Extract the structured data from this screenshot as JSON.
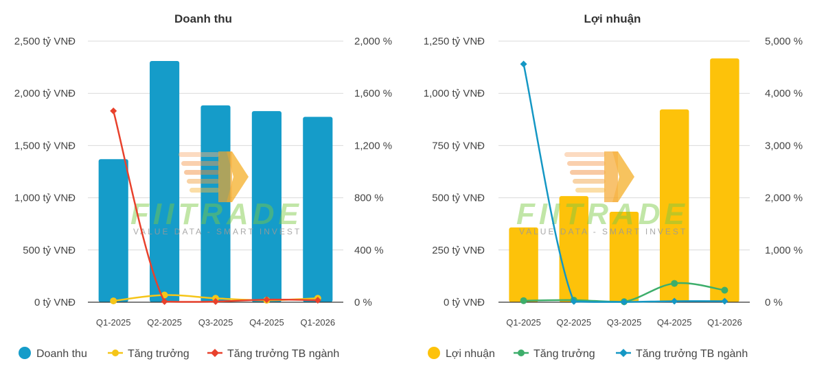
{
  "watermark": {
    "text": "FIITRADE",
    "tagline": "VALUE DATA - SMART INVEST"
  },
  "colors": {
    "revenue_bar": "#159CC9",
    "revenue_growth": "#F5C518",
    "revenue_industry": "#E8412C",
    "profit_bar": "#FDC20A",
    "profit_growth": "#3DAE6B",
    "profit_industry": "#1497C4",
    "grid": "#d9d9d9",
    "axis": "#333333"
  },
  "chart_data": [
    {
      "type": "bar",
      "title": "Doanh thu",
      "categories": [
        "Q1-2025",
        "Q2-2025",
        "Q3-2025",
        "Q4-2025",
        "Q1-2026"
      ],
      "bar_series": {
        "name": "Doanh thu",
        "values": [
          1370,
          2310,
          1885,
          1830,
          1775
        ]
      },
      "line_series": [
        {
          "name": "Tăng trưởng",
          "values": [
            10,
            55,
            30,
            15,
            30
          ]
        },
        {
          "name": "Tăng trưởng TB ngành",
          "values": [
            1465,
            5,
            5,
            20,
            15
          ]
        }
      ],
      "y_left": {
        "ylim": [
          0,
          2500
        ],
        "ticks": [
          0,
          500,
          1000,
          1500,
          2000,
          2500
        ],
        "tick_labels": [
          "0 tỷ VNĐ",
          "500 tỷ VNĐ",
          "1,000 tỷ VNĐ",
          "1,500 tỷ VNĐ",
          "2,000 tỷ VNĐ",
          "2,500 tỷ VNĐ"
        ]
      },
      "y_right": {
        "ylim": [
          0,
          2000
        ],
        "ticks": [
          0,
          400,
          800,
          1200,
          1600,
          2000
        ],
        "tick_labels": [
          "0 %",
          "400 %",
          "800 %",
          "1,200 %",
          "1,600 %",
          "2,000 %"
        ]
      },
      "legend": "bottom"
    },
    {
      "type": "bar",
      "title": "Lợi nhuận",
      "categories": [
        "Q1-2025",
        "Q2-2025",
        "Q3-2025",
        "Q4-2025",
        "Q1-2026"
      ],
      "bar_series": {
        "name": "Lợi nhuận",
        "values": [
          358,
          508,
          433,
          923,
          1167
        ]
      },
      "line_series": [
        {
          "name": "Tăng trưởng",
          "values": [
            30,
            40,
            10,
            360,
            230
          ]
        },
        {
          "name": "Tăng trưởng TB ngành",
          "values": [
            4560,
            15,
            5,
            20,
            20
          ]
        }
      ],
      "y_left": {
        "ylim": [
          0,
          1250
        ],
        "ticks": [
          0,
          250,
          500,
          750,
          1000,
          1250
        ],
        "tick_labels": [
          "0 tỷ VNĐ",
          "250 tỷ VNĐ",
          "500 tỷ VNĐ",
          "750 tỷ VNĐ",
          "1,000 tỷ VNĐ",
          "1,250 tỷ VNĐ"
        ]
      },
      "y_right": {
        "ylim": [
          0,
          5000
        ],
        "ticks": [
          0,
          1000,
          2000,
          3000,
          4000,
          5000
        ],
        "tick_labels": [
          "0 %",
          "1,000 %",
          "2,000 %",
          "3,000 %",
          "4,000 %",
          "5,000 %"
        ]
      },
      "legend": "bottom"
    }
  ]
}
